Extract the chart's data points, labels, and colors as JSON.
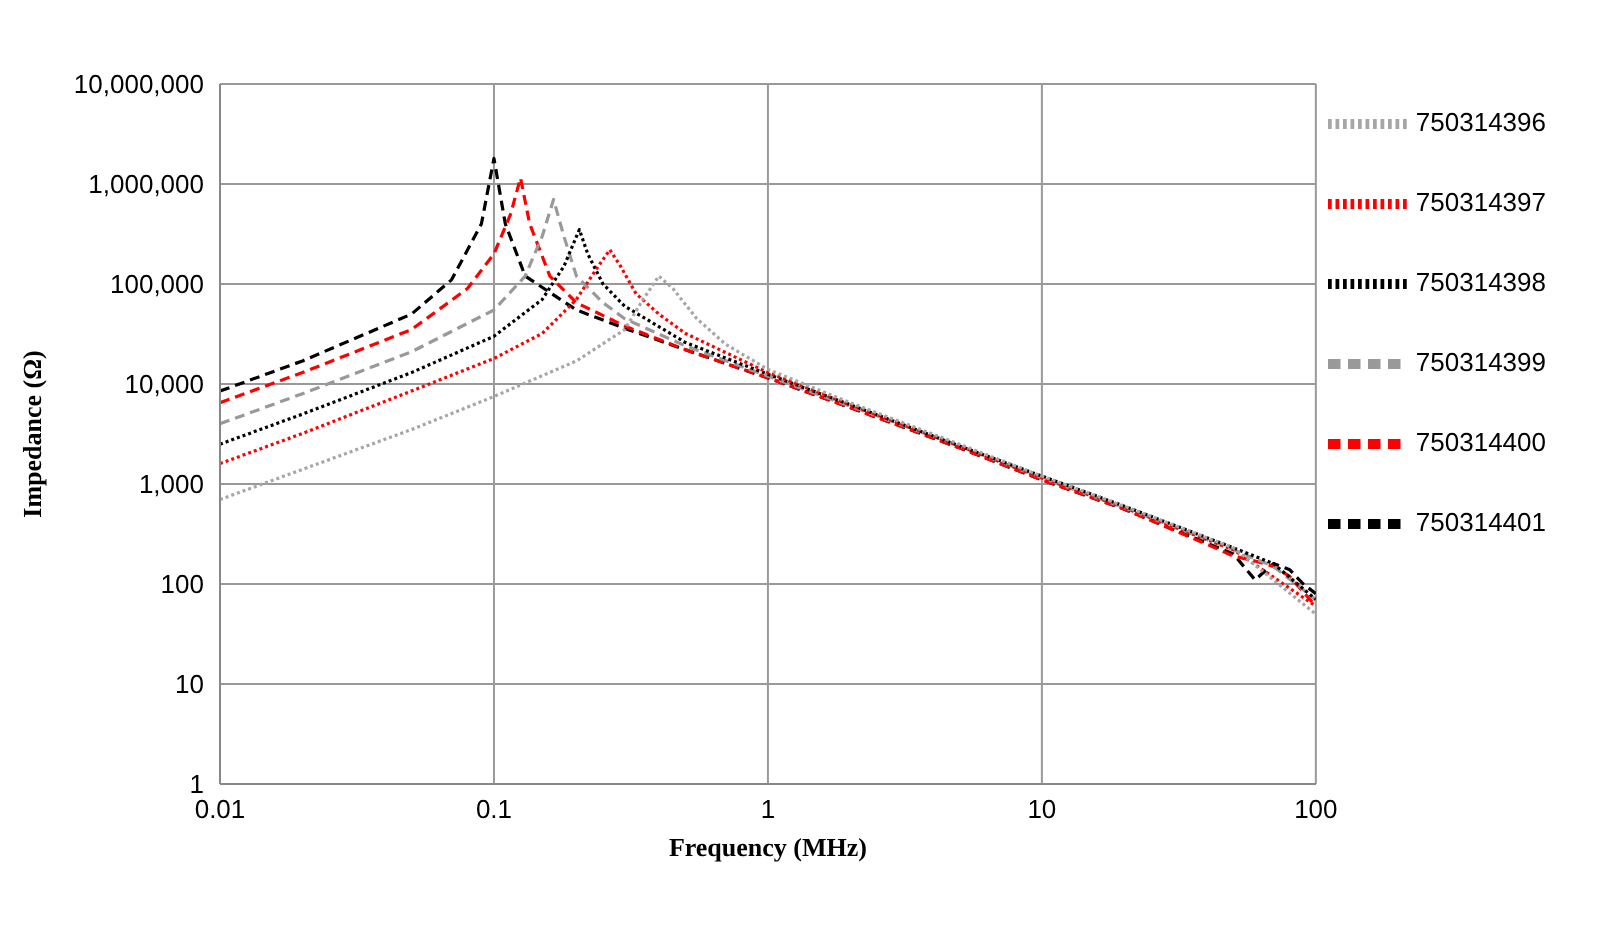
{
  "chart_data": {
    "type": "line",
    "xlabel": "Frequency (MHz)",
    "ylabel": "Impedance (Ω)",
    "log": "xy",
    "grid": true,
    "legend": "right",
    "marker": "none",
    "xlim": [
      0.01,
      100
    ],
    "xticks": [
      0.01,
      0.1,
      1,
      10,
      100
    ],
    "ylim": [
      1,
      10000000
    ],
    "yticks": [
      1,
      10,
      100,
      {
        "value": 1000,
        "label": "1,000"
      },
      {
        "value": 10000,
        "label": "10,000"
      },
      {
        "value": 100000,
        "label": "100,000"
      },
      {
        "value": 1000000,
        "label": "1,000,000"
      },
      {
        "value": 10000000,
        "label": "10,000,000"
      }
    ],
    "series": [
      {
        "name": "750314401",
        "color": "#000000",
        "line_style": "dashed",
        "x": [
          0.01,
          0.02,
          0.05,
          0.07,
          0.09,
          0.1,
          0.11,
          0.13,
          0.2,
          0.3,
          0.5,
          1,
          2,
          5,
          10,
          20,
          50,
          60,
          70,
          80,
          90,
          100
        ],
        "values": [
          8500,
          17000,
          50000,
          110000,
          400000,
          1800000,
          400000,
          120000,
          55000,
          36000,
          22000,
          11500,
          5800,
          2300,
          1100,
          560,
          200,
          110,
          160,
          140,
          100,
          80
        ]
      },
      {
        "name": "750314400",
        "color": "#ff0000",
        "line_style": "dashed",
        "x": [
          0.01,
          0.02,
          0.05,
          0.08,
          0.1,
          0.115,
          0.125,
          0.135,
          0.16,
          0.2,
          0.3,
          0.5,
          1,
          2,
          5,
          10,
          20,
          40,
          50,
          60,
          70,
          80,
          100
        ],
        "values": [
          6500,
          13000,
          35000,
          90000,
          200000,
          500000,
          1150000,
          400000,
          120000,
          65000,
          38000,
          22000,
          11500,
          5800,
          2300,
          1100,
          560,
          250,
          190,
          170,
          150,
          120,
          60
        ]
      },
      {
        "name": "750314399",
        "color": "#999999",
        "line_style": "dashed",
        "x": [
          0.01,
          0.02,
          0.05,
          0.1,
          0.13,
          0.15,
          0.165,
          0.18,
          0.2,
          0.25,
          0.3,
          0.5,
          1,
          2,
          5,
          10,
          20,
          50,
          70,
          100
        ],
        "values": [
          4000,
          8000,
          21000,
          55000,
          120000,
          300000,
          700000,
          300000,
          120000,
          65000,
          45000,
          24000,
          12000,
          6000,
          2400,
          1150,
          580,
          220,
          150,
          70
        ]
      },
      {
        "name": "750314398",
        "color": "#000000",
        "line_style": "dotted",
        "x": [
          0.01,
          0.02,
          0.05,
          0.1,
          0.15,
          0.18,
          0.205,
          0.22,
          0.25,
          0.3,
          0.5,
          1,
          2,
          5,
          10,
          20,
          50,
          70,
          100
        ],
        "values": [
          2500,
          5000,
          13000,
          30000,
          70000,
          150000,
          350000,
          200000,
          100000,
          60000,
          26000,
          12500,
          6200,
          2400,
          1200,
          600,
          230,
          160,
          70
        ]
      },
      {
        "name": "750314397",
        "color": "#ff0000",
        "line_style": "dotted",
        "x": [
          0.01,
          0.02,
          0.05,
          0.1,
          0.15,
          0.2,
          0.24,
          0.265,
          0.29,
          0.33,
          0.4,
          0.5,
          1,
          2,
          5,
          10,
          20,
          50,
          100
        ],
        "values": [
          1600,
          3200,
          8500,
          18000,
          32000,
          70000,
          150000,
          220000,
          150000,
          80000,
          50000,
          32000,
          13000,
          6200,
          2400,
          1150,
          580,
          220,
          60
        ]
      },
      {
        "name": "750314396",
        "color": "#a6a6a6",
        "line_style": "dotted",
        "x": [
          0.01,
          0.02,
          0.05,
          0.1,
          0.2,
          0.3,
          0.35,
          0.4,
          0.45,
          0.55,
          0.7,
          1,
          2,
          5,
          10,
          20,
          50,
          100
        ],
        "values": [
          700,
          1400,
          3500,
          7500,
          17000,
          35000,
          70000,
          120000,
          90000,
          45000,
          25000,
          14000,
          6500,
          2500,
          1200,
          600,
          230,
          50
        ]
      }
    ]
  }
}
